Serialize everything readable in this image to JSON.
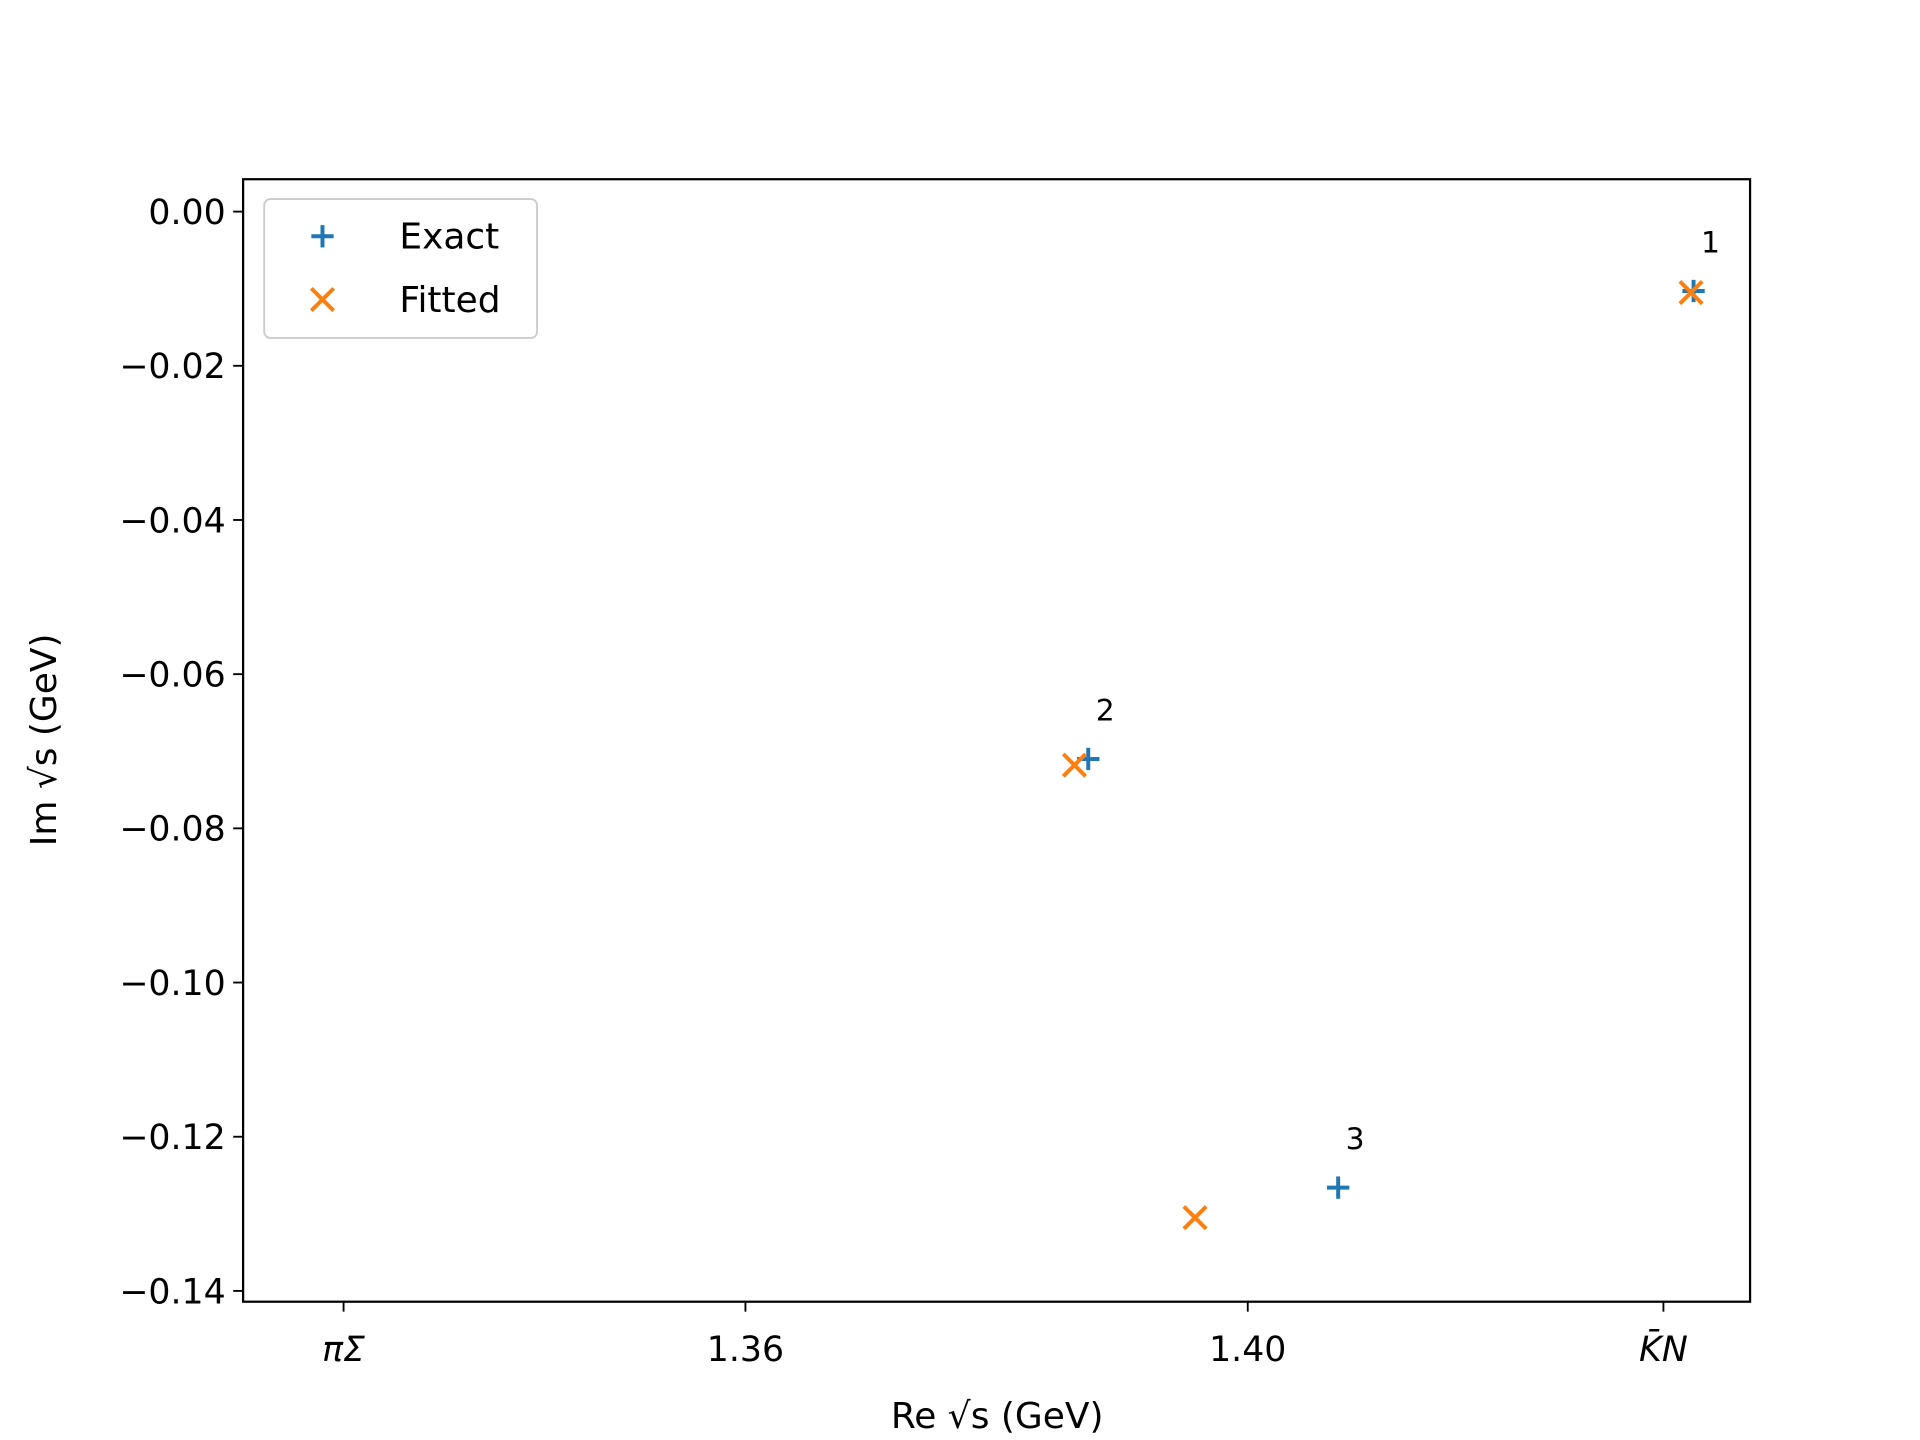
{
  "chart_data": {
    "type": "scatter",
    "xlabel": "Re √s (GeV)",
    "ylabel": "Im √s (GeV)",
    "xlim": [
      1.32,
      1.44
    ],
    "ylim": [
      -0.1414,
      0.0042
    ],
    "xticks": [
      {
        "value": 1.328,
        "label": "πΣ"
      },
      1.36,
      {
        "value": 1.4,
        "label": "1.40"
      },
      {
        "value": 1.4331,
        "label": "K̄N"
      }
    ],
    "yticks": [
      {
        "value": 0,
        "label": "0.00"
      },
      {
        "value": -0.02,
        "label": "−0.02"
      },
      {
        "value": -0.04,
        "label": "−0.04"
      },
      {
        "value": -0.06,
        "label": "−0.06"
      },
      {
        "value": -0.08,
        "label": "−0.08"
      },
      {
        "value": -0.1,
        "label": "−0.10"
      },
      {
        "value": -0.12,
        "label": "−0.12"
      },
      {
        "value": -0.14,
        "label": "−0.14"
      }
    ],
    "legend": "upper left",
    "series": [
      {
        "name": "Exact",
        "color": "#1f77b4",
        "marker": "plus",
        "x": [
          1.4355,
          1.3873,
          1.4072
        ],
        "values": [
          -0.0103,
          -0.071,
          -0.1266
        ],
        "point_labels": [
          "1",
          "2",
          "3"
        ]
      },
      {
        "name": "Fitted",
        "color": "#ff7f0e",
        "marker": "x",
        "x": [
          1.4353,
          1.3862,
          1.3958
        ],
        "values": [
          -0.0105,
          -0.0718,
          -0.1305
        ]
      }
    ]
  }
}
